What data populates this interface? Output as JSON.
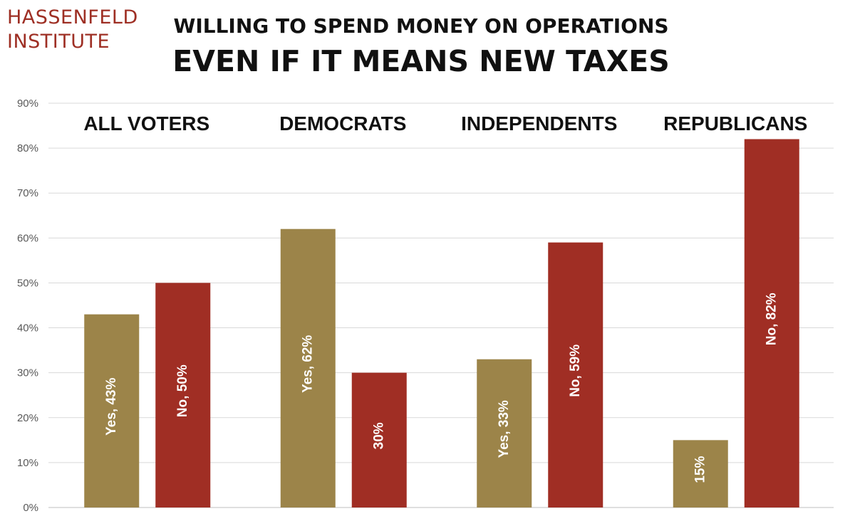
{
  "logo": {
    "line1": "HASSENFELD",
    "line2": "INSTITUTE"
  },
  "title": {
    "line1": "WILLING TO SPEND MONEY ON OPERATIONS",
    "line2": "EVEN IF IT MEANS NEW TAXES"
  },
  "colors": {
    "yes": "#9c8449",
    "no": "#a02e24",
    "brand": "#9e2f24",
    "grid": "#d9d9d9"
  },
  "chart_data": {
    "type": "bar",
    "categories": [
      "ALL VOTERS",
      "DEMOCRATS",
      "INDEPENDENTS",
      "REPUBLICANS"
    ],
    "series": [
      {
        "values": [
          43,
          62,
          33,
          15
        ],
        "labels": [
          "Yes, 43%",
          "Yes, 62%",
          "Yes, 33%",
          "15%"
        ]
      },
      {
        "values": [
          50,
          30,
          59,
          82
        ],
        "labels": [
          "No, 50%",
          "30%",
          "No, 59%",
          "No, 82%"
        ]
      }
    ],
    "yticks": [
      "0%",
      "10%",
      "20%",
      "30%",
      "40%",
      "50%",
      "60%",
      "70%",
      "80%",
      "90%"
    ],
    "ylim": [
      0,
      90
    ],
    "grid": true,
    "legend": "none"
  }
}
